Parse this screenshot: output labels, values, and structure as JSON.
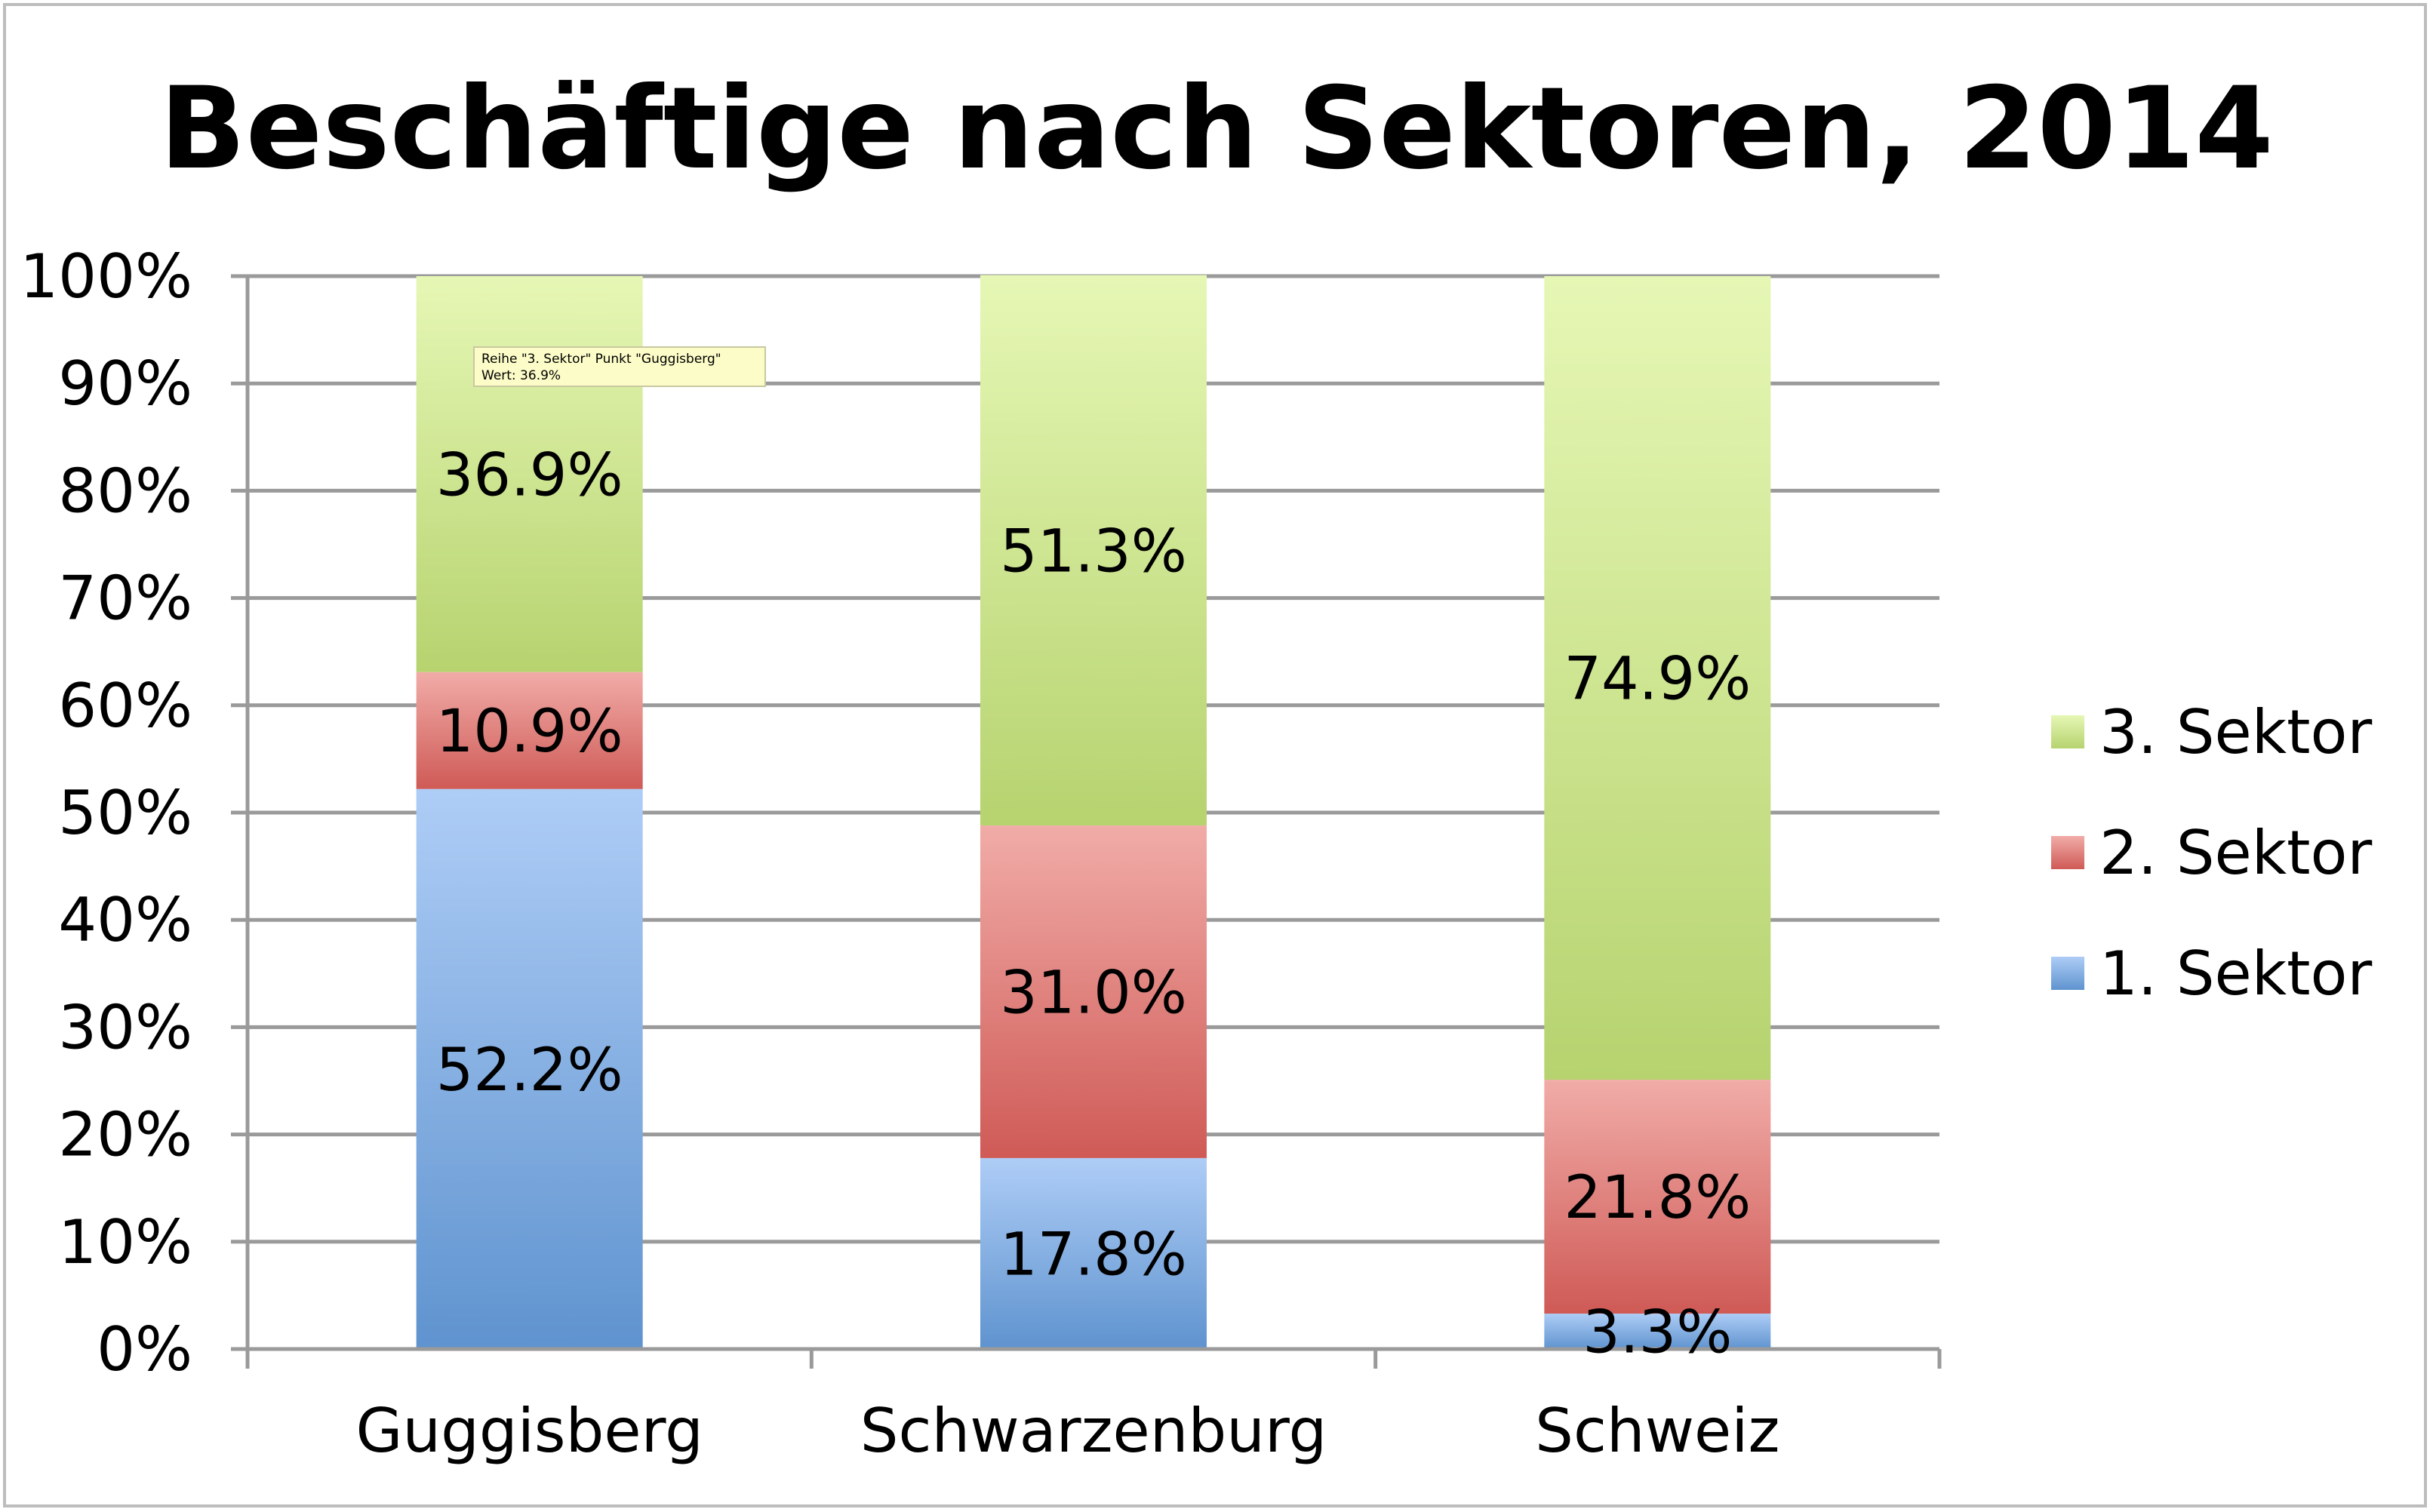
{
  "chart_data": {
    "type": "bar",
    "stacked": true,
    "title": "Beschäftige nach Sektoren, 2014",
    "categories": [
      "Guggisberg",
      "Schwarzenburg",
      "Schweiz"
    ],
    "series": [
      {
        "name": "1. Sektor",
        "values": [
          52.2,
          17.8,
          3.3
        ],
        "labels": [
          "52.2%",
          "17.8%",
          "3.3%"
        ],
        "color_top": "#aecdf6",
        "color_bottom": "#5f93cf"
      },
      {
        "name": "2. Sektor",
        "values": [
          10.9,
          31.0,
          21.8
        ],
        "labels": [
          "10.9%",
          "31.0%",
          "21.8%"
        ],
        "color_top": "#f1aca8",
        "color_bottom": "#cf5a56"
      },
      {
        "name": "3. Sektor",
        "values": [
          36.9,
          51.3,
          74.9
        ],
        "labels": [
          "36.9%",
          "51.3%",
          "74.9%"
        ],
        "color_top": "#e6f7b5",
        "color_bottom": "#b6d36f"
      }
    ],
    "ylim": [
      0,
      100
    ],
    "yticks": [
      "0%",
      "10%",
      "20%",
      "30%",
      "40%",
      "50%",
      "60%",
      "70%",
      "80%",
      "90%",
      "100%"
    ],
    "grid": true,
    "legend_position": "right",
    "legend_order": [
      "3. Sektor",
      "2. Sektor",
      "1. Sektor"
    ]
  },
  "tooltip": {
    "line1": "Reihe \"3. Sektor\" Punkt \"Guggisberg\"",
    "line2": "Wert: 36.9%"
  }
}
